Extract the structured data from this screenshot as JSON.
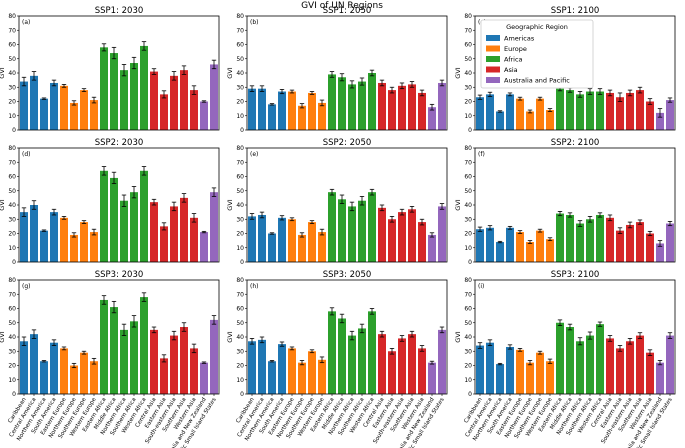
{
  "figure_title": "GVI of UN Regions",
  "y_axis_label": "GVI",
  "legend": {
    "title": "Geographic Region",
    "entries": [
      {
        "label": "Americas",
        "color": "#1f77b4"
      },
      {
        "label": "Europe",
        "color": "#ff7f0e"
      },
      {
        "label": "Africa",
        "color": "#2ca02c"
      },
      {
        "label": "Asia",
        "color": "#d62728"
      },
      {
        "label": "Australia and Pacific",
        "color": "#9467bd"
      }
    ]
  },
  "chart_data": [
    {
      "panel": "(a)",
      "type": "bar",
      "title": "SSP1: 2030",
      "ylabel": "GVI",
      "ylim": [
        0,
        80
      ],
      "yticks": [
        0,
        10,
        20,
        30,
        40,
        50,
        60,
        70,
        80
      ],
      "values": [
        34,
        38,
        22,
        33,
        31,
        19,
        28,
        21,
        58,
        54,
        42,
        47,
        59,
        41,
        25,
        38,
        42,
        28,
        20,
        46
      ],
      "errors": [
        3,
        3,
        0.5,
        2,
        1,
        1.5,
        1,
        2,
        2.5,
        4,
        4,
        4,
        3,
        2,
        2.5,
        3,
        3,
        3,
        0.5,
        3
      ]
    },
    {
      "panel": "(b)",
      "type": "bar",
      "title": "SSP1: 2050",
      "ylabel": "GVI",
      "ylim": [
        0,
        80
      ],
      "yticks": [
        0,
        10,
        20,
        30,
        40,
        50,
        60,
        70,
        80
      ],
      "values": [
        29,
        29,
        18,
        27,
        27,
        17,
        26,
        19,
        39,
        37,
        32,
        34,
        40,
        33,
        28,
        31,
        32,
        26,
        16,
        33
      ],
      "errors": [
        2,
        2,
        0.5,
        1.5,
        1,
        1.5,
        1,
        2,
        2,
        2.5,
        2.5,
        2.5,
        2,
        2,
        2,
        2,
        2,
        2,
        2,
        2
      ]
    },
    {
      "panel": "(c)",
      "type": "bar",
      "title": "SSP1: 2100",
      "ylabel": "GVI",
      "ylim": [
        0,
        80
      ],
      "yticks": [
        0,
        10,
        20,
        30,
        40,
        50,
        60,
        70,
        80
      ],
      "values": [
        23,
        25,
        13,
        25,
        22,
        13,
        22,
        14,
        29,
        28,
        25,
        27,
        27,
        26,
        23,
        26,
        28,
        20,
        12,
        21
      ],
      "errors": [
        1.5,
        1.5,
        0.5,
        1,
        1,
        1,
        1,
        1,
        1.5,
        1.5,
        2,
        2,
        2,
        2,
        3,
        2,
        2,
        2,
        3,
        1.5
      ]
    },
    {
      "panel": "(d)",
      "type": "bar",
      "title": "SSP2: 2030",
      "ylabel": "GVI",
      "ylim": [
        0,
        80
      ],
      "yticks": [
        0,
        10,
        20,
        30,
        40,
        50,
        60,
        70,
        80
      ],
      "values": [
        35,
        40,
        22,
        35,
        31,
        19,
        28,
        21,
        64,
        59,
        43,
        49,
        64,
        42,
        25,
        39,
        45,
        31,
        21,
        49
      ],
      "errors": [
        3,
        3,
        0.5,
        2,
        1,
        1.5,
        1,
        2,
        3,
        4,
        4,
        4,
        3,
        2,
        2.5,
        3,
        3,
        3,
        0.5,
        3
      ]
    },
    {
      "panel": "(e)",
      "type": "bar",
      "title": "SSP2: 2050",
      "ylabel": "GVI",
      "ylim": [
        0,
        80
      ],
      "yticks": [
        0,
        10,
        20,
        30,
        40,
        50,
        60,
        70,
        80
      ],
      "values": [
        32,
        33,
        20,
        31,
        30,
        19,
        28,
        21,
        49,
        44,
        39,
        43,
        49,
        38,
        30,
        35,
        37,
        28,
        19,
        39
      ],
      "errors": [
        2,
        2,
        0.5,
        1.5,
        1,
        1.5,
        1,
        2,
        2,
        3,
        3,
        3,
        2,
        2,
        2,
        2,
        2,
        2,
        1.5,
        2
      ]
    },
    {
      "panel": "(f)",
      "type": "bar",
      "title": "SSP2: 2100",
      "ylabel": "GVI",
      "ylim": [
        0,
        80
      ],
      "yticks": [
        0,
        10,
        20,
        30,
        40,
        50,
        60,
        70,
        80
      ],
      "values": [
        23,
        24,
        14,
        24,
        21,
        14,
        22,
        16,
        34,
        33,
        27,
        30,
        33,
        31,
        22,
        26,
        28,
        20,
        13,
        27
      ],
      "errors": [
        1.5,
        1.5,
        0.5,
        1,
        1,
        1,
        1,
        1,
        1.5,
        1.5,
        2,
        2,
        1.5,
        2,
        2,
        2,
        1.5,
        1.5,
        2,
        1.5
      ]
    },
    {
      "panel": "(g)",
      "type": "bar",
      "title": "SSP3: 2030",
      "ylabel": "GVI",
      "ylim": [
        0,
        80
      ],
      "yticks": [
        0,
        10,
        20,
        30,
        40,
        50,
        60,
        70,
        80
      ],
      "values": [
        37,
        42,
        23,
        36,
        32,
        20,
        29,
        23,
        66,
        61,
        45,
        51,
        68,
        45,
        25,
        41,
        47,
        32,
        22,
        52
      ],
      "errors": [
        3,
        3,
        0.5,
        2,
        1,
        1.5,
        1,
        2,
        3,
        4,
        4,
        4,
        3,
        2,
        2.5,
        3,
        3,
        3,
        0.5,
        3
      ]
    },
    {
      "panel": "(h)",
      "type": "bar",
      "title": "SSP3: 2050",
      "ylabel": "GVI",
      "ylim": [
        0,
        80
      ],
      "yticks": [
        0,
        10,
        20,
        30,
        40,
        50,
        60,
        70,
        80
      ],
      "values": [
        37,
        38,
        23,
        35,
        32,
        22,
        30,
        24,
        58,
        53,
        41,
        46,
        58,
        42,
        30,
        39,
        42,
        32,
        22,
        45
      ],
      "errors": [
        2,
        2,
        0.5,
        1.5,
        1,
        1.5,
        1,
        2,
        2.5,
        3,
        3,
        3,
        2,
        2,
        2,
        2,
        2,
        2,
        1,
        2
      ]
    },
    {
      "panel": "(i)",
      "type": "bar",
      "title": "SSP3: 2100",
      "ylabel": "GVI",
      "ylim": [
        0,
        80
      ],
      "yticks": [
        0,
        10,
        20,
        30,
        40,
        50,
        60,
        70,
        80
      ],
      "values": [
        34,
        36,
        21,
        33,
        31,
        22,
        29,
        23,
        50,
        47,
        37,
        41,
        49,
        39,
        32,
        37,
        41,
        29,
        22,
        41
      ],
      "errors": [
        2,
        2,
        0.5,
        1.5,
        1,
        1.5,
        1,
        1.5,
        2,
        2,
        2.5,
        2.5,
        1.5,
        2,
        2,
        2,
        2,
        2,
        1.5,
        2
      ]
    }
  ],
  "categories": [
    "Caribbean",
    "Central America",
    "Northern America",
    "South America",
    "Eastern Europe",
    "Northern Europe",
    "Southern Europe",
    "Western Europe",
    "Eastern Africa",
    "Middle Africa",
    "Northern Africa",
    "Southern Africa",
    "Western Africa",
    "Central Asia",
    "Eastern Asia",
    "South-eastern Asia",
    "Southern Asia",
    "Western Asia",
    "Australia and New Zealand",
    "Pacific Small Island States"
  ],
  "category_groups": [
    0,
    0,
    0,
    0,
    1,
    1,
    1,
    1,
    2,
    2,
    2,
    2,
    2,
    3,
    3,
    3,
    3,
    3,
    4,
    4
  ]
}
